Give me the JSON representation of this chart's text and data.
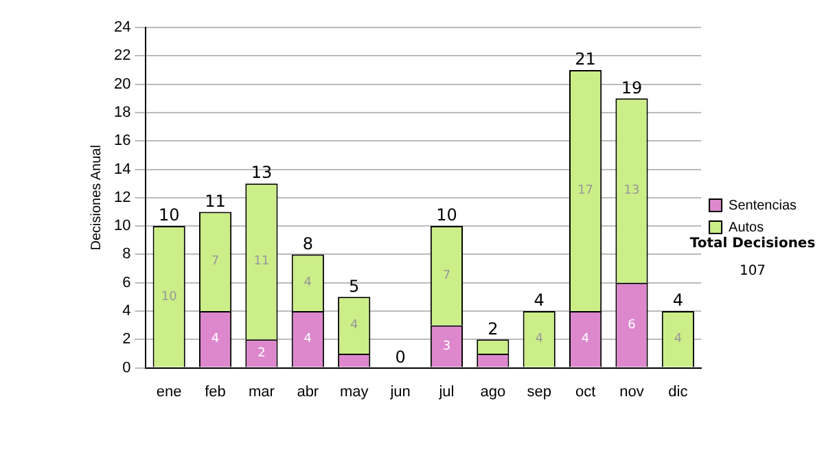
{
  "chart_data": {
    "type": "bar",
    "stacked": true,
    "ylabel": "Decisiones Anual",
    "categories": [
      "ene",
      "feb",
      "mar",
      "abr",
      "may",
      "jun",
      "jul",
      "ago",
      "sep",
      "oct",
      "nov",
      "dic"
    ],
    "series": [
      {
        "name": "Sentencias",
        "color": "#dd88cc",
        "values": [
          0,
          4,
          2,
          4,
          1,
          0,
          3,
          1,
          0,
          4,
          6,
          0
        ],
        "value_labels": [
          null,
          "4",
          "2",
          "4",
          null,
          null,
          "3",
          null,
          null,
          "4",
          "6",
          null
        ]
      },
      {
        "name": "Autos",
        "color": "#ccee88",
        "values": [
          10,
          7,
          11,
          4,
          4,
          0,
          7,
          1,
          4,
          17,
          13,
          4
        ],
        "value_labels": [
          "10",
          "7",
          "11",
          "4",
          "4",
          null,
          "7",
          null,
          "4",
          "17",
          "13",
          "4"
        ]
      }
    ],
    "totals": [
      "10",
      "11",
      "13",
      "8",
      "5",
      "0",
      "10",
      "2",
      "4",
      "21",
      "19",
      "4"
    ],
    "ylim": [
      0,
      24
    ],
    "yticks": [
      0,
      2,
      4,
      6,
      8,
      10,
      12,
      14,
      16,
      18,
      20,
      22,
      24
    ],
    "grid": "y",
    "legend": "right",
    "annotations": [
      "Total Decisiones",
      "107"
    ]
  }
}
